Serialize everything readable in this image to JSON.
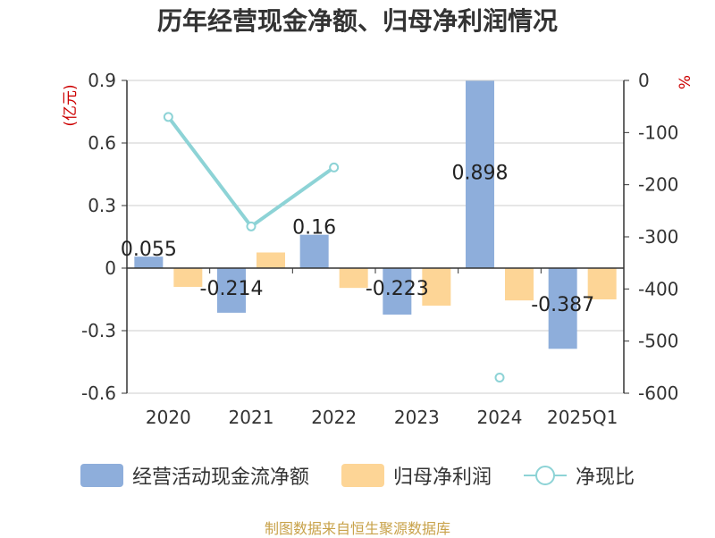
{
  "title": "历年经营现金净额、归母净利润情况",
  "source": "制图数据来自恒生聚源数据库",
  "chart_data": {
    "type": "bar",
    "categories": [
      "2020",
      "2021",
      "2022",
      "2023",
      "2024",
      "2025Q1"
    ],
    "left_axis": {
      "unit": "(亿元)",
      "ylim": [
        -0.6,
        0.9
      ],
      "ticks": [
        "0.9",
        "0.6",
        "0.3",
        "0",
        "-0.3",
        "-0.6"
      ],
      "tick_values": [
        0.9,
        0.6,
        0.3,
        0,
        -0.3,
        -0.6
      ]
    },
    "right_axis": {
      "unit": "%",
      "ylim": [
        -600,
        0
      ],
      "ticks": [
        "0",
        "-100",
        "-200",
        "-300",
        "-400",
        "-500",
        "-600"
      ],
      "tick_values": [
        0,
        -100,
        -200,
        -300,
        -400,
        -500,
        -600
      ]
    },
    "series": [
      {
        "name": "经营活动现金流净额",
        "kind": "bar",
        "axis": "left",
        "color": "#8eaedb",
        "values": [
          0.055,
          -0.214,
          0.16,
          -0.223,
          0.898,
          -0.387
        ],
        "labels": [
          "0.055",
          "-0.214",
          "0.16",
          "-0.223",
          "0.898",
          "-0.387"
        ]
      },
      {
        "name": "归母净利润",
        "kind": "bar",
        "axis": "left",
        "color": "#fdd596",
        "values": [
          -0.09,
          0.075,
          -0.095,
          -0.18,
          -0.155,
          -0.15
        ]
      },
      {
        "name": "净现比",
        "kind": "line",
        "axis": "right",
        "color": "#8dd3d6",
        "values": [
          -70,
          -280,
          -167,
          null,
          -570,
          null
        ]
      }
    ],
    "grid": true,
    "legend_position": "bottom"
  }
}
